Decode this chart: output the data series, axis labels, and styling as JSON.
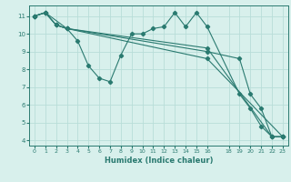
{
  "title": "",
  "xlabel": "Humidex (Indice chaleur)",
  "bg_color": "#d8f0ec",
  "grid_color": "#b8ddd8",
  "line_color": "#2a7a70",
  "xlim": [
    -0.5,
    23.5
  ],
  "ylim": [
    3.7,
    11.6
  ],
  "yticks": [
    4,
    5,
    6,
    7,
    8,
    9,
    10,
    11
  ],
  "xticks": [
    0,
    1,
    2,
    3,
    4,
    5,
    6,
    7,
    8,
    9,
    10,
    11,
    12,
    13,
    14,
    15,
    16,
    18,
    19,
    20,
    21,
    22,
    23
  ],
  "series": [
    {
      "x": [
        0,
        1,
        2,
        3,
        4,
        5,
        6,
        7,
        8,
        9,
        10,
        11,
        12,
        13,
        14,
        15,
        16,
        19,
        20,
        21,
        22,
        23
      ],
      "y": [
        11.0,
        11.2,
        10.5,
        10.3,
        9.6,
        8.2,
        7.5,
        7.3,
        8.8,
        10.0,
        10.0,
        10.3,
        10.4,
        11.2,
        10.4,
        11.2,
        10.4,
        6.6,
        5.8,
        4.8,
        4.2,
        4.2
      ]
    },
    {
      "x": [
        0,
        1,
        2,
        3,
        16,
        19,
        20,
        21,
        22,
        23
      ],
      "y": [
        11.0,
        11.2,
        10.5,
        10.3,
        9.0,
        8.6,
        6.6,
        5.8,
        4.2,
        4.2
      ]
    },
    {
      "x": [
        0,
        1,
        2,
        3,
        16,
        22,
        23
      ],
      "y": [
        11.0,
        11.2,
        10.5,
        10.3,
        9.2,
        4.2,
        4.2
      ]
    },
    {
      "x": [
        0,
        1,
        3,
        16,
        23
      ],
      "y": [
        11.0,
        11.2,
        10.3,
        8.6,
        4.2
      ]
    }
  ]
}
